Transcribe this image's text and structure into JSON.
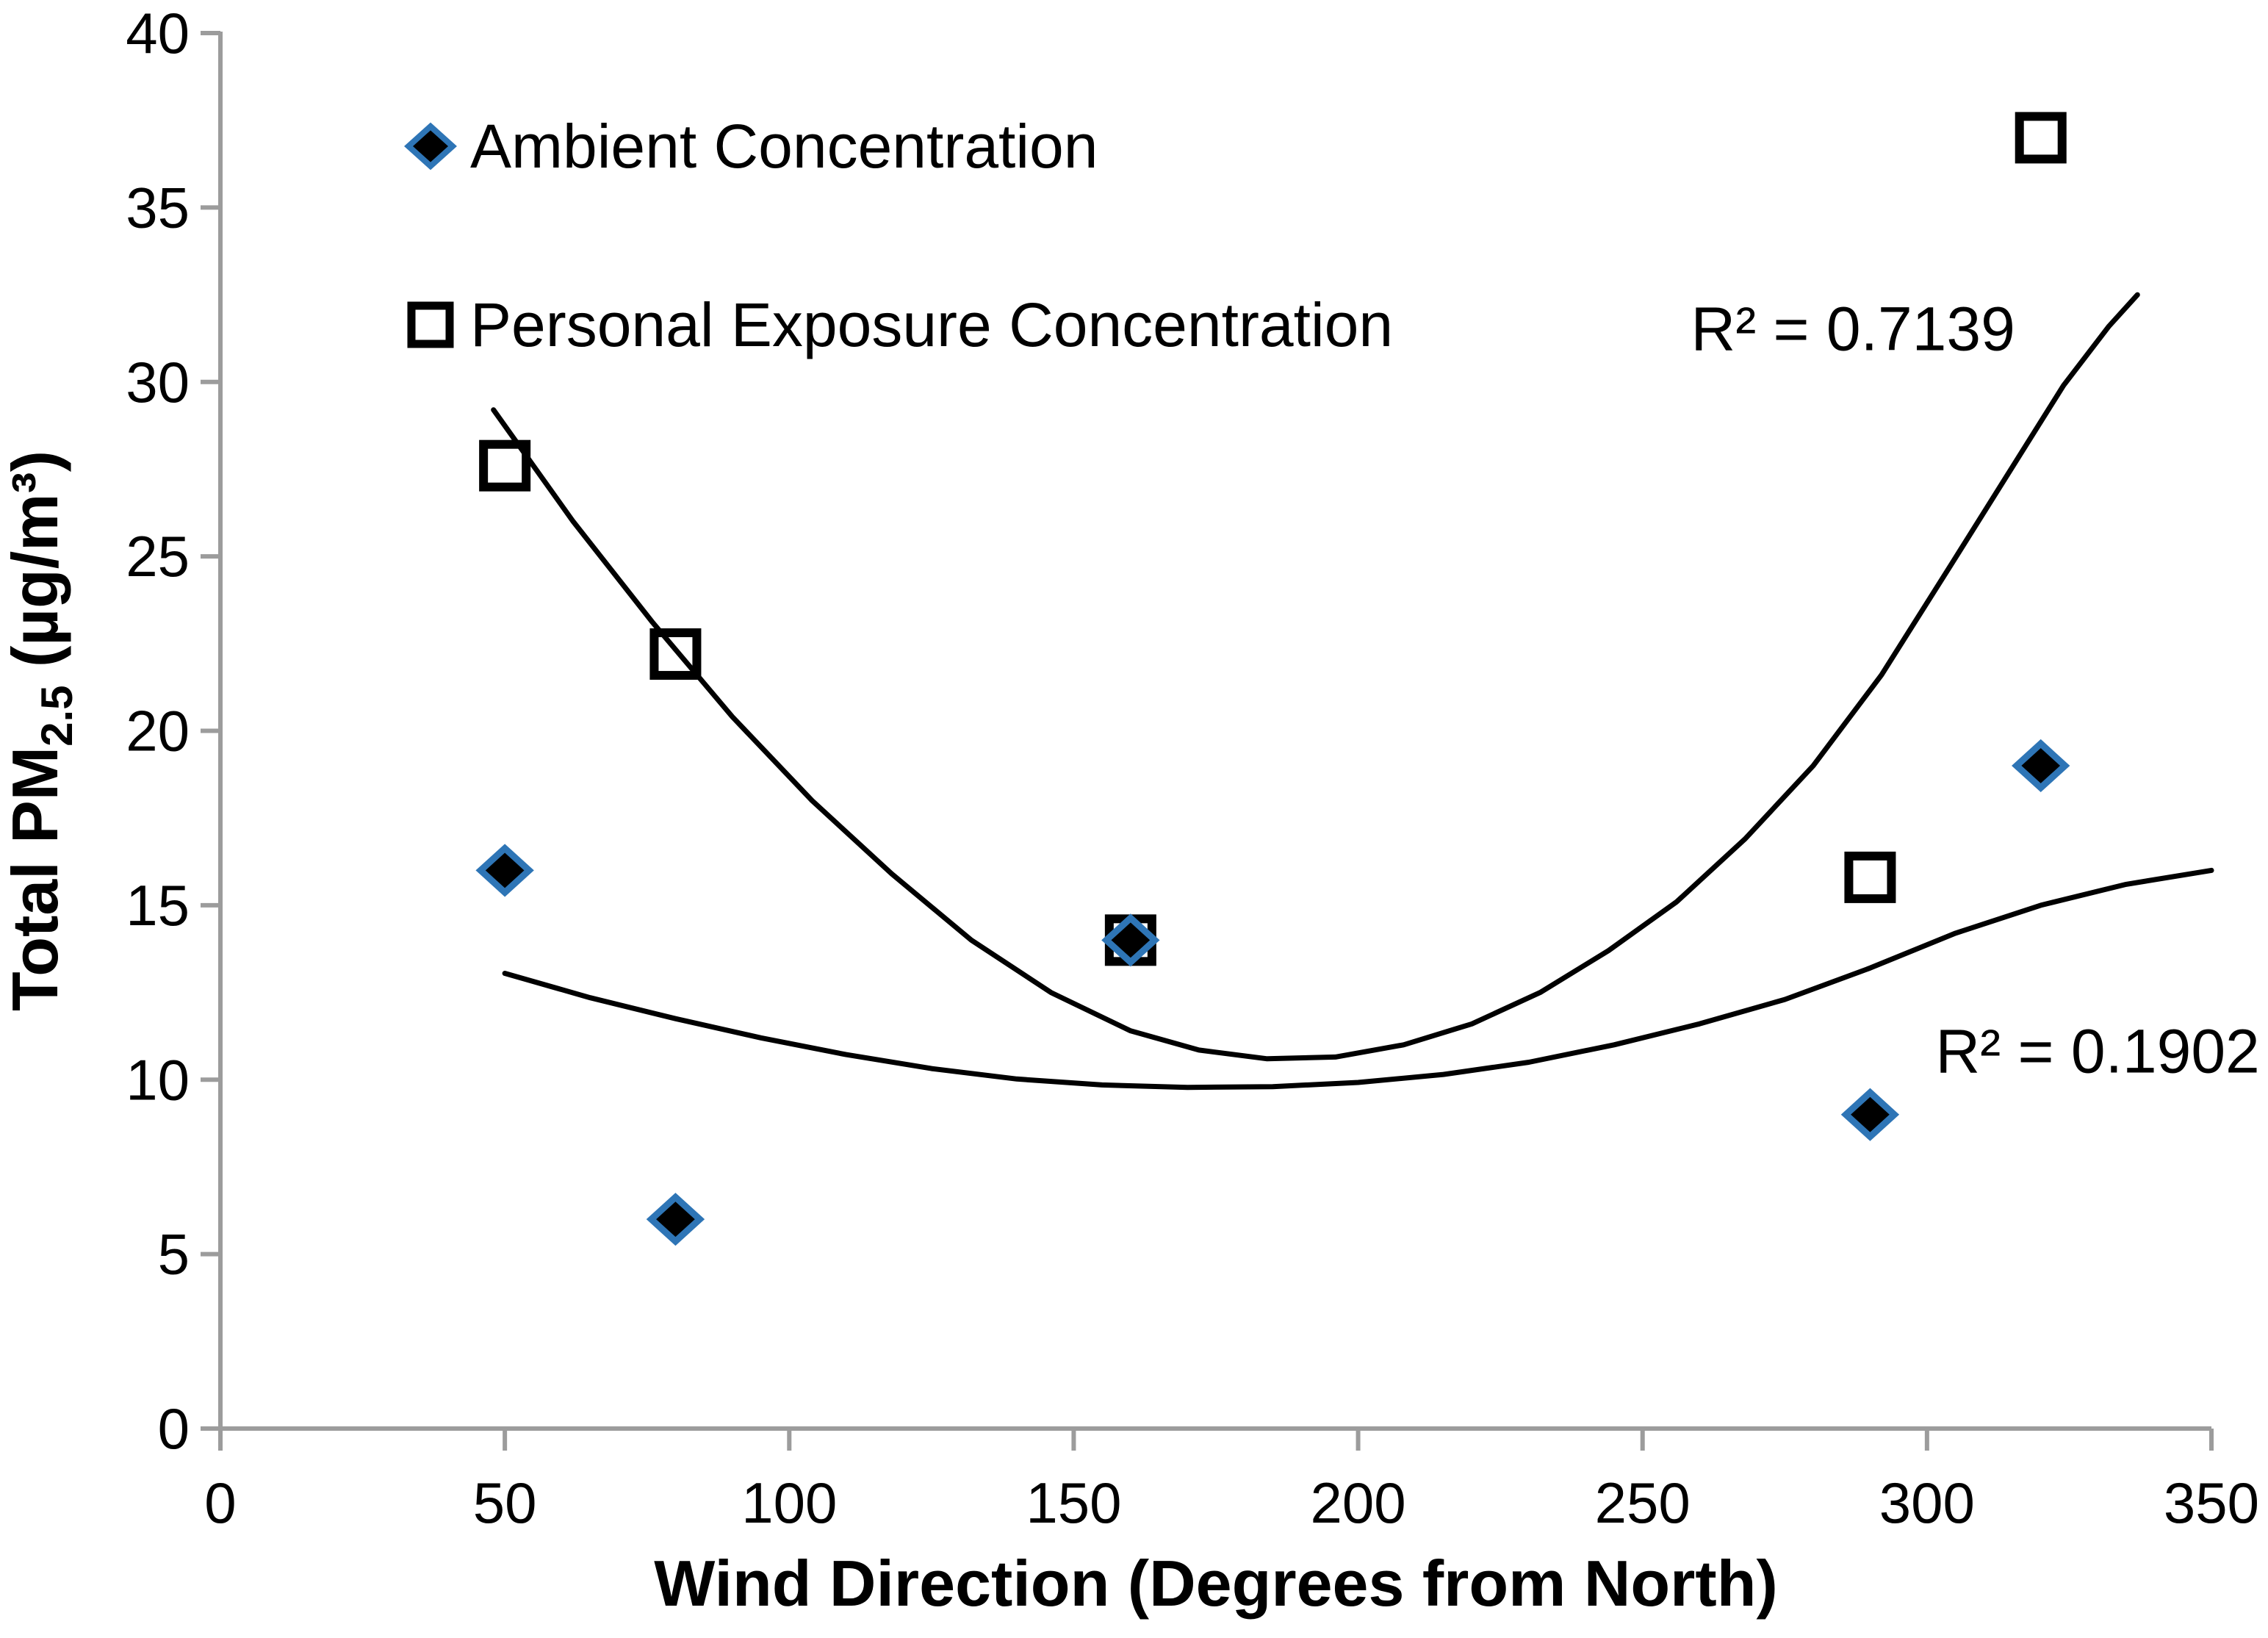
{
  "chart_data": {
    "type": "scatter",
    "title": "",
    "xlabel": "Wind Direction (Degrees from North)",
    "ylabel": "Total PM2.5 (µg/m³)",
    "ylabel_parts": {
      "prefix": "Total PM",
      "subscript": "2.5",
      "suffix": " (µg/m³)"
    },
    "xlim": [
      0,
      350
    ],
    "ylim": [
      0,
      40
    ],
    "x_ticks": [
      "0",
      "50",
      "100",
      "150",
      "200",
      "250",
      "300",
      "350"
    ],
    "y_ticks": [
      "0",
      "5",
      "10",
      "15",
      "20",
      "25",
      "30",
      "35",
      "40"
    ],
    "grid": false,
    "legend_position": "inside-top-left",
    "series": [
      {
        "name": "Ambient Concentration",
        "marker": "diamond",
        "marker_fill": "#000000",
        "marker_stroke": "#2E75B6",
        "points": [
          [
            50,
            16
          ],
          [
            80,
            6
          ],
          [
            160,
            14
          ],
          [
            290,
            9
          ],
          [
            320,
            19
          ]
        ],
        "r_squared_label": "R² = 0.1902",
        "trendline_type": "polynomial",
        "trendline": [
          [
            50,
            13.05
          ],
          [
            65,
            12.35
          ],
          [
            80,
            11.75
          ],
          [
            95,
            11.2
          ],
          [
            110,
            10.72
          ],
          [
            125,
            10.32
          ],
          [
            140,
            10.02
          ],
          [
            155,
            9.85
          ],
          [
            170,
            9.78
          ],
          [
            185,
            9.8
          ],
          [
            200,
            9.92
          ],
          [
            215,
            10.15
          ],
          [
            230,
            10.5
          ],
          [
            245,
            11.0
          ],
          [
            260,
            11.6
          ],
          [
            275,
            12.3
          ],
          [
            290,
            13.2
          ],
          [
            305,
            14.2
          ],
          [
            320,
            15.0
          ],
          [
            335,
            15.6
          ],
          [
            350,
            16.0
          ]
        ]
      },
      {
        "name": "Personal Exposure Concentration",
        "marker": "square",
        "marker_fill": "none",
        "marker_stroke": "#000000",
        "points": [
          [
            50,
            27.6
          ],
          [
            80,
            22.2
          ],
          [
            160,
            14
          ],
          [
            290,
            15.8
          ],
          [
            320,
            37
          ]
        ],
        "r_squared_label": "R² = 0.7139",
        "trendline_type": "polynomial",
        "trendline": [
          [
            48,
            29.2
          ],
          [
            62,
            26.0
          ],
          [
            76,
            23.1
          ],
          [
            90,
            20.4
          ],
          [
            104,
            18.0
          ],
          [
            118,
            15.9
          ],
          [
            132,
            14.0
          ],
          [
            146,
            12.5
          ],
          [
            160,
            11.4
          ],
          [
            172,
            10.85
          ],
          [
            184,
            10.6
          ],
          [
            196,
            10.65
          ],
          [
            208,
            11.0
          ],
          [
            220,
            11.6
          ],
          [
            232,
            12.5
          ],
          [
            244,
            13.7
          ],
          [
            256,
            15.1
          ],
          [
            268,
            16.9
          ],
          [
            280,
            19.0
          ],
          [
            292,
            21.6
          ],
          [
            304,
            24.7
          ],
          [
            314,
            27.3
          ],
          [
            324,
            29.9
          ],
          [
            332,
            31.6
          ],
          [
            337,
            32.5
          ]
        ]
      }
    ],
    "annotations": [
      {
        "text": "R² = 0.7139",
        "x": 287,
        "y": 31.5,
        "series": "Personal Exposure Concentration"
      },
      {
        "text": "R² = 0.1902",
        "x": 330,
        "y": 10.8,
        "series": "Ambient Concentration"
      }
    ],
    "colors": {
      "marker_blue": "#2E75B6",
      "axis_gray": "#9C9C9C",
      "text_black": "#000000",
      "background": "#FFFFFF"
    }
  }
}
